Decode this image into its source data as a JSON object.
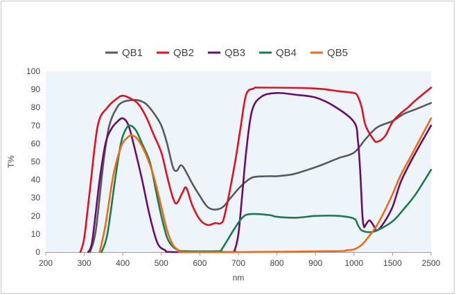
{
  "chart_data": {
    "type": "line",
    "title": "",
    "xlabel": "nm",
    "ylabel": "T%",
    "ylim": [
      0,
      100
    ],
    "y_ticks": [
      0,
      10,
      20,
      30,
      40,
      50,
      60,
      70,
      80,
      90,
      100
    ],
    "x_tick_labels": [
      "200",
      "300",
      "400",
      "500",
      "600",
      "700",
      "800",
      "900",
      "1000",
      "1500",
      "2500"
    ],
    "x_axis_note": "non-uniform scale: 200-1000 nm linear in 100 nm steps, then 1500 and 2500",
    "grid": false,
    "plot_background": "#eef5fa",
    "legend_position": "top-center",
    "series": [
      {
        "name": "QB1",
        "color": "#595959",
        "points": [
          [
            315,
            0
          ],
          [
            330,
            12
          ],
          [
            350,
            50
          ],
          [
            365,
            70
          ],
          [
            385,
            80
          ],
          [
            400,
            83
          ],
          [
            420,
            84
          ],
          [
            440,
            84
          ],
          [
            460,
            82
          ],
          [
            480,
            77
          ],
          [
            500,
            70
          ],
          [
            515,
            60
          ],
          [
            530,
            47
          ],
          [
            540,
            45
          ],
          [
            550,
            48
          ],
          [
            560,
            46
          ],
          [
            580,
            38
          ],
          [
            600,
            31
          ],
          [
            620,
            25
          ],
          [
            640,
            23.5
          ],
          [
            660,
            25
          ],
          [
            680,
            30
          ],
          [
            700,
            35
          ],
          [
            720,
            39
          ],
          [
            740,
            41.5
          ],
          [
            780,
            42
          ],
          [
            800,
            42
          ],
          [
            840,
            43
          ],
          [
            880,
            45.5
          ],
          [
            920,
            48.5
          ],
          [
            960,
            52
          ],
          [
            1000,
            55
          ],
          [
            1150,
            62.5
          ],
          [
            1300,
            69
          ],
          [
            1500,
            72.5
          ],
          [
            1800,
            76.5
          ],
          [
            2100,
            79
          ],
          [
            2500,
            82.5
          ]
        ]
      },
      {
        "name": "QB2",
        "color": "#e0101e",
        "points": [
          [
            290,
            0
          ],
          [
            300,
            8
          ],
          [
            315,
            35
          ],
          [
            335,
            70
          ],
          [
            360,
            80
          ],
          [
            385,
            85
          ],
          [
            400,
            86.5
          ],
          [
            420,
            85
          ],
          [
            440,
            82
          ],
          [
            460,
            75
          ],
          [
            480,
            65
          ],
          [
            500,
            55
          ],
          [
            515,
            42
          ],
          [
            530,
            30
          ],
          [
            540,
            27
          ],
          [
            555,
            33
          ],
          [
            565,
            35.5
          ],
          [
            580,
            26
          ],
          [
            600,
            18
          ],
          [
            620,
            15
          ],
          [
            640,
            16
          ],
          [
            655,
            16
          ],
          [
            665,
            21
          ],
          [
            690,
            48
          ],
          [
            705,
            68
          ],
          [
            720,
            87
          ],
          [
            740,
            90.5
          ],
          [
            760,
            91
          ],
          [
            900,
            90.5
          ],
          [
            960,
            89
          ],
          [
            1000,
            88
          ],
          [
            1050,
            86
          ],
          [
            1100,
            80
          ],
          [
            1150,
            70
          ],
          [
            1250,
            62.5
          ],
          [
            1300,
            61
          ],
          [
            1400,
            64
          ],
          [
            1500,
            72
          ],
          [
            1700,
            76.5
          ],
          [
            1900,
            80
          ],
          [
            2100,
            84
          ],
          [
            2500,
            91
          ]
        ]
      },
      {
        "name": "QB3",
        "color": "#6a0a6a",
        "points": [
          [
            310,
            0
          ],
          [
            320,
            5
          ],
          [
            340,
            40
          ],
          [
            355,
            60
          ],
          [
            370,
            68
          ],
          [
            385,
            72
          ],
          [
            400,
            74
          ],
          [
            415,
            70
          ],
          [
            430,
            58
          ],
          [
            450,
            40
          ],
          [
            470,
            20
          ],
          [
            490,
            5
          ],
          [
            510,
            1
          ],
          [
            530,
            0
          ],
          [
            680,
            0
          ],
          [
            690,
            1
          ],
          [
            700,
            10
          ],
          [
            710,
            32
          ],
          [
            720,
            55
          ],
          [
            735,
            78
          ],
          [
            760,
            86
          ],
          [
            800,
            88
          ],
          [
            850,
            87
          ],
          [
            900,
            85.5
          ],
          [
            950,
            80.5
          ],
          [
            1000,
            72
          ],
          [
            1050,
            62
          ],
          [
            1080,
            45
          ],
          [
            1110,
            20
          ],
          [
            1130,
            14
          ],
          [
            1150,
            15
          ],
          [
            1200,
            17.5
          ],
          [
            1250,
            15
          ],
          [
            1300,
            12
          ],
          [
            1400,
            17
          ],
          [
            1500,
            25
          ],
          [
            1700,
            38
          ],
          [
            1900,
            47
          ],
          [
            2100,
            55
          ],
          [
            2500,
            70
          ]
        ]
      },
      {
        "name": "QB4",
        "color": "#1a7a4c",
        "points": [
          [
            345,
            0
          ],
          [
            360,
            10
          ],
          [
            380,
            40
          ],
          [
            395,
            60
          ],
          [
            408,
            68
          ],
          [
            420,
            70
          ],
          [
            435,
            67
          ],
          [
            450,
            60
          ],
          [
            470,
            50
          ],
          [
            485,
            35
          ],
          [
            500,
            20
          ],
          [
            515,
            8
          ],
          [
            530,
            3
          ],
          [
            545,
            1
          ],
          [
            560,
            0.5
          ],
          [
            650,
            0.5
          ],
          [
            655,
            1
          ],
          [
            670,
            6
          ],
          [
            690,
            13
          ],
          [
            710,
            19
          ],
          [
            730,
            21
          ],
          [
            780,
            20.5
          ],
          [
            800,
            19.5
          ],
          [
            850,
            19
          ],
          [
            900,
            20
          ],
          [
            960,
            20
          ],
          [
            1000,
            18.5
          ],
          [
            1050,
            15
          ],
          [
            1100,
            12
          ],
          [
            1200,
            11
          ],
          [
            1300,
            12
          ],
          [
            1500,
            17
          ],
          [
            1800,
            24
          ],
          [
            2100,
            32
          ],
          [
            2500,
            45.5
          ]
        ]
      },
      {
        "name": "QB5",
        "color": "#ee6a17",
        "points": [
          [
            340,
            0
          ],
          [
            355,
            15
          ],
          [
            375,
            42
          ],
          [
            395,
            58
          ],
          [
            410,
            63
          ],
          [
            425,
            64.5
          ],
          [
            440,
            62
          ],
          [
            460,
            54
          ],
          [
            480,
            42
          ],
          [
            500,
            25
          ],
          [
            515,
            12
          ],
          [
            530,
            4
          ],
          [
            545,
            1
          ],
          [
            560,
            0
          ],
          [
            700,
            0
          ],
          [
            950,
            0.5
          ],
          [
            980,
            1
          ],
          [
            1000,
            1.5
          ],
          [
            1100,
            4
          ],
          [
            1200,
            9
          ],
          [
            1300,
            15
          ],
          [
            1400,
            23
          ],
          [
            1500,
            32
          ],
          [
            1700,
            42
          ],
          [
            2000,
            54
          ],
          [
            2500,
            74
          ]
        ]
      }
    ]
  }
}
